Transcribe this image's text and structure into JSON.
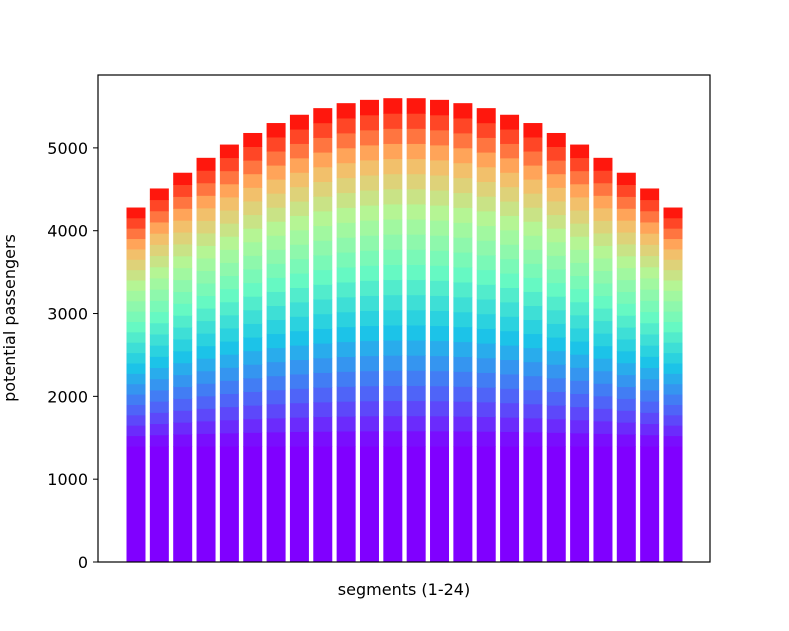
{
  "chart_data": {
    "type": "bar",
    "stacked": true,
    "xlabel": "segments (1-24)",
    "ylabel": "potential passengers",
    "ylim": [
      0,
      5880
    ],
    "yticks": [
      0,
      1000,
      2000,
      3000,
      4000,
      5000
    ],
    "x_tick_labels": "none",
    "grid": false,
    "legend": "none",
    "categories": [
      "1",
      "2",
      "3",
      "4",
      "5",
      "6",
      "7",
      "8",
      "9",
      "10",
      "11",
      "12",
      "13",
      "14",
      "15",
      "16",
      "17",
      "18",
      "19",
      "20",
      "21",
      "22",
      "23",
      "24"
    ],
    "totals": [
      4280,
      4510,
      4700,
      4880,
      5040,
      5180,
      5300,
      5400,
      5480,
      5540,
      5580,
      5600,
      5600,
      5580,
      5540,
      5480,
      5400,
      5300,
      5180,
      5040,
      4880,
      4700,
      4510,
      4280
    ],
    "base_layer_value": 1400,
    "upper_layer_count": 23,
    "colormap": "rainbow",
    "colors": {
      "base": "#8000ff",
      "gradient": [
        "#8000ff",
        "#4a6ef7",
        "#1ac7e7",
        "#66f9c3",
        "#b2f896",
        "#ffb462",
        "#ff0000"
      ]
    }
  }
}
